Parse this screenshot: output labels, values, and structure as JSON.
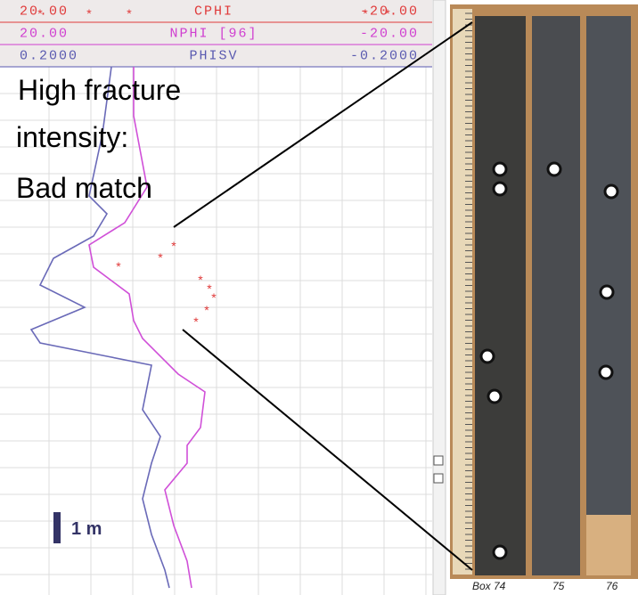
{
  "header": {
    "tracks": [
      {
        "left": "20.00",
        "name": "CPHI",
        "right": "-20.00",
        "color": "#e03a3a"
      },
      {
        "left": "20.00",
        "name": "NPHI [96]",
        "right": "-20.00",
        "color": "#d040d0"
      },
      {
        "left": "0.2000",
        "name": "PHISV",
        "right": "-0.2000",
        "color": "#5a5ab0"
      }
    ]
  },
  "annotation": {
    "lines": [
      "High fracture",
      "intensity:",
      "Bad match"
    ]
  },
  "scale": {
    "label": "1 m"
  },
  "core": {
    "box_labels": [
      "Box 74",
      "75",
      "76"
    ]
  }
}
